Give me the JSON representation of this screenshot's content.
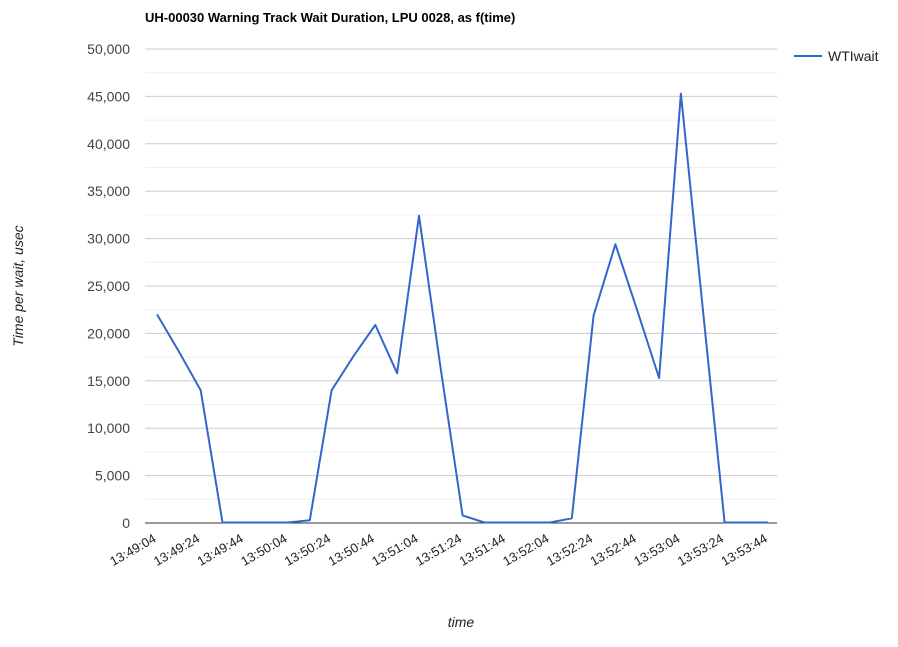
{
  "chart_data": {
    "type": "line",
    "title": "UH-00030 Warning Track Wait Duration, LPU 0028, as f(time)",
    "xlabel": "time",
    "ylabel": "Time per wait, usec",
    "ylim": [
      0,
      50000
    ],
    "yticks": [
      "0",
      "5,000",
      "10,000",
      "15,000",
      "20,000",
      "25,000",
      "30,000",
      "35,000",
      "40,000",
      "45,000",
      "50,000"
    ],
    "xtick_labels": [
      "13:49:04",
      "13:49:24",
      "13:49:44",
      "13:50:04",
      "13:50:24",
      "13:50:44",
      "13:51:04",
      "13:51:24",
      "13:51:44",
      "13:52:04",
      "13:52:24",
      "13:52:44",
      "13:53:04",
      "13:53:24",
      "13:53:44"
    ],
    "x": [
      "13:49:04",
      "13:49:14",
      "13:49:24",
      "13:49:34",
      "13:49:44",
      "13:49:54",
      "13:50:04",
      "13:50:14",
      "13:50:24",
      "13:50:34",
      "13:50:44",
      "13:50:54",
      "13:51:04",
      "13:51:14",
      "13:51:24",
      "13:51:34",
      "13:51:44",
      "13:51:54",
      "13:52:04",
      "13:52:14",
      "13:52:24",
      "13:52:34",
      "13:52:44",
      "13:52:54",
      "13:53:04",
      "13:53:14",
      "13:53:24",
      "13:53:34",
      "13:53:44"
    ],
    "series": [
      {
        "name": "WTIwait",
        "color": "#3366cc",
        "values": [
          22000,
          18100,
          14000,
          50,
          50,
          50,
          50,
          300,
          14000,
          17600,
          20900,
          15800,
          32400,
          16200,
          800,
          50,
          50,
          50,
          50,
          500,
          21900,
          29400,
          22400,
          15300,
          45300,
          22600,
          50,
          50,
          50
        ]
      }
    ],
    "grid": true,
    "legend_position": "right"
  }
}
